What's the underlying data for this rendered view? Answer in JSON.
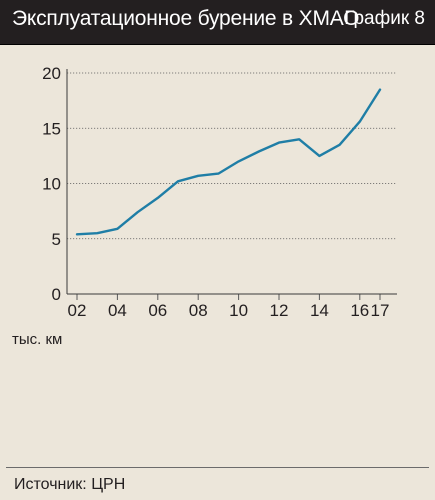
{
  "header": {
    "title": "Эксплуатационное бурение в ХМАО",
    "chart_number": "График 8"
  },
  "footer": {
    "units": "тыс. км",
    "source": "Источник: ЦРН"
  },
  "colors": {
    "header_bg": "#231f20",
    "panel_bg": "#ece6da",
    "line": "#1f7ea6",
    "grid": "#5a5a5a"
  },
  "chart_data": {
    "type": "line",
    "title": "Эксплуатационное бурение в ХМАО",
    "ylabel": "тыс. км",
    "xlabel": "",
    "ylim": [
      0,
      20
    ],
    "xlim": [
      2002,
      2017
    ],
    "grid": true,
    "y_ticks": [
      "0",
      "5",
      "10",
      "15",
      "20"
    ],
    "y_tick_values": [
      0,
      5,
      10,
      15,
      20
    ],
    "x_ticks": [
      "02",
      "04",
      "06",
      "08",
      "10",
      "12",
      "14",
      "16",
      "17"
    ],
    "x_tick_values": [
      2002,
      2004,
      2006,
      2008,
      2010,
      2012,
      2014,
      2016,
      2017
    ],
    "series": [
      {
        "x": [
          2002,
          2003,
          2004,
          2005,
          2006,
          2007,
          2008,
          2009,
          2010,
          2011,
          2012,
          2013,
          2014,
          2015,
          2016,
          2017
        ],
        "values": [
          5.4,
          5.5,
          5.9,
          7.4,
          8.7,
          10.2,
          10.7,
          10.9,
          12.0,
          12.9,
          13.7,
          14.0,
          12.5,
          13.5,
          15.6,
          18.5
        ]
      }
    ]
  }
}
